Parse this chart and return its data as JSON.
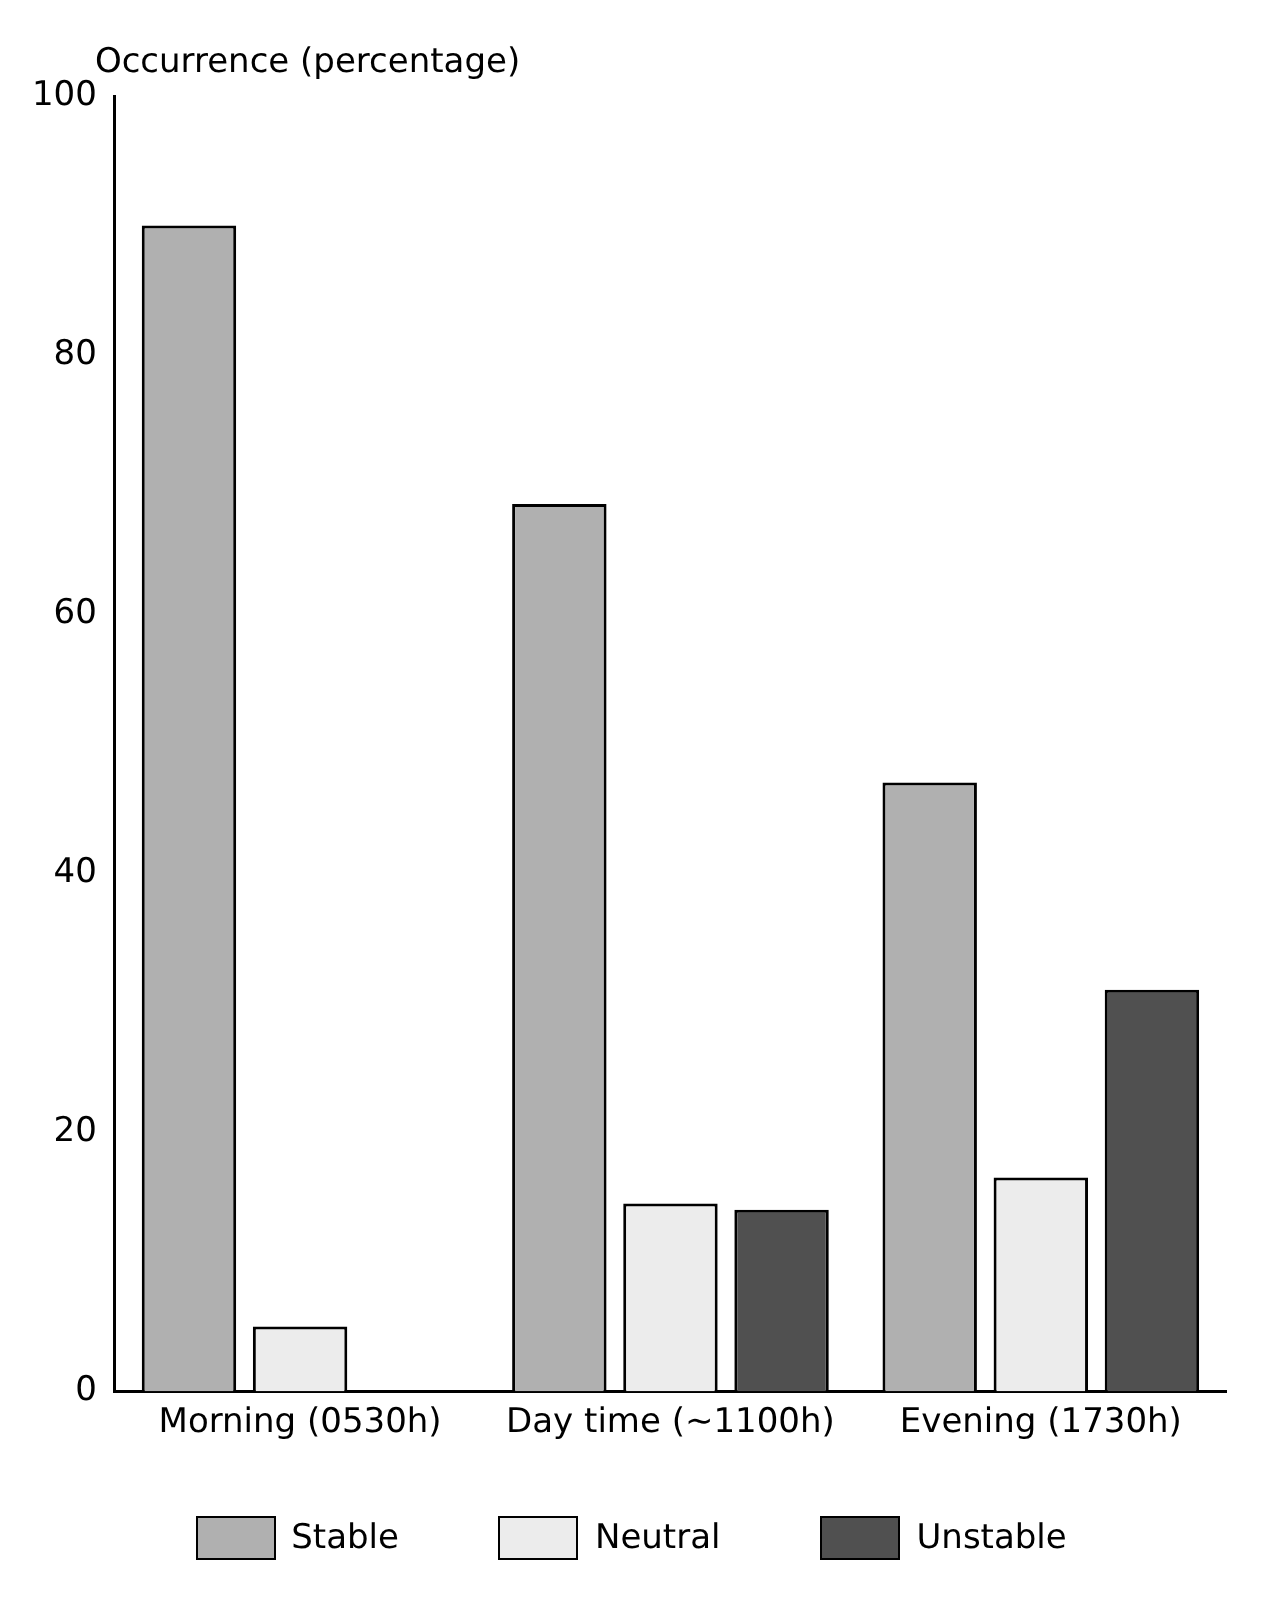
{
  "chart_data": {
    "type": "bar",
    "ylabel": "Occurrence (percentage)",
    "categories": [
      "Morning (0530h)",
      "Day time (~1100h)",
      "Evening (1730h)"
    ],
    "series": [
      {
        "name": "Stable",
        "color": "#b0b0b0",
        "values": [
          90,
          68.5,
          47
        ]
      },
      {
        "name": "Neutral",
        "color": "#ececec",
        "values": [
          5,
          14.5,
          16.5
        ]
      },
      {
        "name": "Unstable",
        "color": "#505050",
        "values": [
          0,
          14,
          31
        ]
      }
    ],
    "ylim": [
      0,
      100
    ],
    "yticks": [
      0,
      20,
      40,
      60,
      80,
      100
    ],
    "grid": false,
    "legend": "bottom"
  }
}
